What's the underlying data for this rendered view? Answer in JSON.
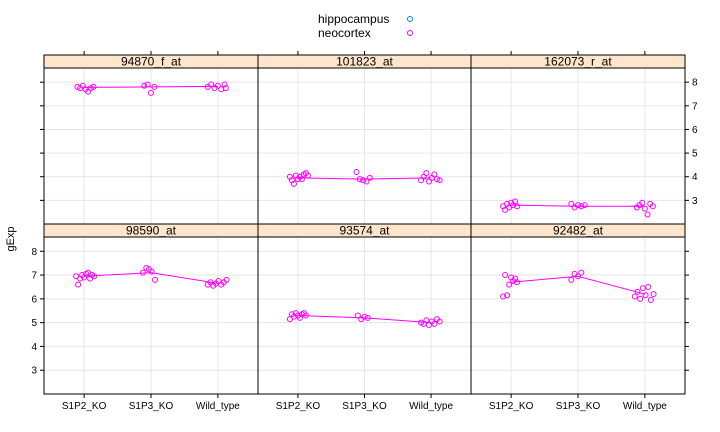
{
  "chart_data": {
    "type": "scatter",
    "ylabel": "gExp",
    "ylim": [
      2,
      8.6
    ],
    "yticks": [
      3,
      4,
      5,
      6,
      7,
      8
    ],
    "categories": [
      "S1P2_KO",
      "S1P3_KO",
      "Wild_type"
    ],
    "grid": true,
    "legend": {
      "placement": "top",
      "entries": [
        {
          "label": "hippocampus",
          "color": "#0080ff"
        },
        {
          "label": "neocortex",
          "color": "#ff00ff"
        }
      ]
    },
    "colors": {
      "strip": "#ffe5cc",
      "point": "#ff00ff",
      "line": "#ff00ff",
      "grid": "#e6e6e6",
      "frame": "#000000"
    },
    "panels": [
      {
        "name": "94870_f_at",
        "row": 0,
        "col": 0,
        "series": [
          {
            "name": "neocortex",
            "means": [
              7.78,
              7.8,
              7.82
            ],
            "points": [
              {
                "x": 0.9,
                "y": 7.8
              },
              {
                "x": 0.94,
                "y": 7.75
              },
              {
                "x": 0.98,
                "y": 7.85
              },
              {
                "x": 1.02,
                "y": 7.7
              },
              {
                "x": 1.06,
                "y": 7.6
              },
              {
                "x": 1.1,
                "y": 7.75
              },
              {
                "x": 1.14,
                "y": 7.8
              },
              {
                "x": 1.9,
                "y": 7.85
              },
              {
                "x": 1.95,
                "y": 7.9
              },
              {
                "x": 2.0,
                "y": 7.55
              },
              {
                "x": 2.05,
                "y": 7.8
              },
              {
                "x": 2.85,
                "y": 7.8
              },
              {
                "x": 2.9,
                "y": 7.9
              },
              {
                "x": 2.95,
                "y": 7.75
              },
              {
                "x": 3.0,
                "y": 7.85
              },
              {
                "x": 3.05,
                "y": 7.7
              },
              {
                "x": 3.1,
                "y": 7.9
              },
              {
                "x": 3.12,
                "y": 7.75
              }
            ]
          }
        ]
      },
      {
        "name": "101823_at",
        "row": 0,
        "col": 1,
        "series": [
          {
            "name": "neocortex",
            "means": [
              3.95,
              3.9,
              3.95
            ],
            "points": [
              {
                "x": 0.88,
                "y": 4.0
              },
              {
                "x": 0.91,
                "y": 3.85
              },
              {
                "x": 0.94,
                "y": 3.7
              },
              {
                "x": 0.97,
                "y": 4.05
              },
              {
                "x": 1.0,
                "y": 3.9
              },
              {
                "x": 1.03,
                "y": 4.0
              },
              {
                "x": 1.06,
                "y": 3.9
              },
              {
                "x": 1.09,
                "y": 4.1
              },
              {
                "x": 1.12,
                "y": 4.15
              },
              {
                "x": 1.15,
                "y": 4.05
              },
              {
                "x": 1.88,
                "y": 4.2
              },
              {
                "x": 1.93,
                "y": 3.9
              },
              {
                "x": 1.98,
                "y": 3.85
              },
              {
                "x": 2.03,
                "y": 3.8
              },
              {
                "x": 2.08,
                "y": 3.95
              },
              {
                "x": 2.85,
                "y": 3.85
              },
              {
                "x": 2.89,
                "y": 4.0
              },
              {
                "x": 2.93,
                "y": 4.15
              },
              {
                "x": 2.97,
                "y": 3.8
              },
              {
                "x": 3.01,
                "y": 3.95
              },
              {
                "x": 3.05,
                "y": 4.1
              },
              {
                "x": 3.09,
                "y": 3.9
              },
              {
                "x": 3.13,
                "y": 3.85
              }
            ]
          }
        ]
      },
      {
        "name": "162073_r_at",
        "row": 0,
        "col": 2,
        "series": [
          {
            "name": "neocortex",
            "means": [
              2.8,
              2.75,
              2.75
            ],
            "points": [
              {
                "x": 0.88,
                "y": 2.75
              },
              {
                "x": 0.91,
                "y": 2.6
              },
              {
                "x": 0.94,
                "y": 2.85
              },
              {
                "x": 0.97,
                "y": 2.7
              },
              {
                "x": 1.0,
                "y": 2.9
              },
              {
                "x": 1.03,
                "y": 2.8
              },
              {
                "x": 1.06,
                "y": 2.95
              },
              {
                "x": 1.09,
                "y": 2.75
              },
              {
                "x": 1.9,
                "y": 2.85
              },
              {
                "x": 1.95,
                "y": 2.7
              },
              {
                "x": 2.0,
                "y": 2.8
              },
              {
                "x": 2.05,
                "y": 2.75
              },
              {
                "x": 2.1,
                "y": 2.8
              },
              {
                "x": 2.88,
                "y": 2.7
              },
              {
                "x": 2.92,
                "y": 2.8
              },
              {
                "x": 2.96,
                "y": 2.9
              },
              {
                "x": 3.0,
                "y": 2.65
              },
              {
                "x": 3.04,
                "y": 2.4
              },
              {
                "x": 3.08,
                "y": 2.85
              },
              {
                "x": 3.12,
                "y": 2.75
              }
            ]
          }
        ]
      },
      {
        "name": "98590_at",
        "row": 1,
        "col": 0,
        "series": [
          {
            "name": "neocortex",
            "means": [
              6.95,
              7.1,
              6.65
            ],
            "points": [
              {
                "x": 0.88,
                "y": 6.95
              },
              {
                "x": 0.91,
                "y": 6.6
              },
              {
                "x": 0.94,
                "y": 6.85
              },
              {
                "x": 0.97,
                "y": 7.0
              },
              {
                "x": 1.0,
                "y": 6.9
              },
              {
                "x": 1.03,
                "y": 7.05
              },
              {
                "x": 1.06,
                "y": 7.1
              },
              {
                "x": 1.09,
                "y": 6.85
              },
              {
                "x": 1.12,
                "y": 7.0
              },
              {
                "x": 1.15,
                "y": 6.95
              },
              {
                "x": 1.88,
                "y": 7.1
              },
              {
                "x": 1.93,
                "y": 7.3
              },
              {
                "x": 1.97,
                "y": 7.25
              },
              {
                "x": 2.01,
                "y": 7.15
              },
              {
                "x": 2.06,
                "y": 6.8
              },
              {
                "x": 2.85,
                "y": 6.6
              },
              {
                "x": 2.89,
                "y": 6.7
              },
              {
                "x": 2.93,
                "y": 6.55
              },
              {
                "x": 2.97,
                "y": 6.65
              },
              {
                "x": 3.01,
                "y": 6.75
              },
              {
                "x": 3.05,
                "y": 6.6
              },
              {
                "x": 3.09,
                "y": 6.7
              },
              {
                "x": 3.13,
                "y": 6.8
              }
            ]
          }
        ]
      },
      {
        "name": "93574_at",
        "row": 1,
        "col": 1,
        "series": [
          {
            "name": "neocortex",
            "means": [
              5.3,
              5.2,
              5.0
            ],
            "points": [
              {
                "x": 0.88,
                "y": 5.15
              },
              {
                "x": 0.91,
                "y": 5.35
              },
              {
                "x": 0.94,
                "y": 5.25
              },
              {
                "x": 0.97,
                "y": 5.4
              },
              {
                "x": 1.0,
                "y": 5.3
              },
              {
                "x": 1.03,
                "y": 5.2
              },
              {
                "x": 1.06,
                "y": 5.35
              },
              {
                "x": 1.09,
                "y": 5.4
              },
              {
                "x": 1.12,
                "y": 5.3
              },
              {
                "x": 1.9,
                "y": 5.3
              },
              {
                "x": 1.95,
                "y": 5.15
              },
              {
                "x": 2.0,
                "y": 5.25
              },
              {
                "x": 2.05,
                "y": 5.2
              },
              {
                "x": 2.85,
                "y": 5.0
              },
              {
                "x": 2.89,
                "y": 4.95
              },
              {
                "x": 2.93,
                "y": 5.1
              },
              {
                "x": 2.97,
                "y": 4.9
              },
              {
                "x": 3.01,
                "y": 5.05
              },
              {
                "x": 3.05,
                "y": 4.95
              },
              {
                "x": 3.09,
                "y": 5.15
              },
              {
                "x": 3.13,
                "y": 5.05
              }
            ]
          }
        ]
      },
      {
        "name": "92482_at",
        "row": 1,
        "col": 2,
        "series": [
          {
            "name": "neocortex",
            "means": [
              6.7,
              6.95,
              6.2
            ],
            "points": [
              {
                "x": 0.88,
                "y": 6.1
              },
              {
                "x": 0.91,
                "y": 7.0
              },
              {
                "x": 0.94,
                "y": 6.15
              },
              {
                "x": 0.97,
                "y": 6.6
              },
              {
                "x": 1.0,
                "y": 6.9
              },
              {
                "x": 1.03,
                "y": 6.75
              },
              {
                "x": 1.06,
                "y": 6.85
              },
              {
                "x": 1.09,
                "y": 6.7
              },
              {
                "x": 1.9,
                "y": 6.8
              },
              {
                "x": 1.95,
                "y": 7.05
              },
              {
                "x": 2.0,
                "y": 6.95
              },
              {
                "x": 2.05,
                "y": 7.1
              },
              {
                "x": 2.85,
                "y": 6.1
              },
              {
                "x": 2.89,
                "y": 6.3
              },
              {
                "x": 2.93,
                "y": 6.0
              },
              {
                "x": 2.97,
                "y": 6.45
              },
              {
                "x": 3.01,
                "y": 6.15
              },
              {
                "x": 3.05,
                "y": 6.5
              },
              {
                "x": 3.09,
                "y": 5.95
              },
              {
                "x": 3.13,
                "y": 6.2
              }
            ]
          }
        ]
      }
    ]
  }
}
